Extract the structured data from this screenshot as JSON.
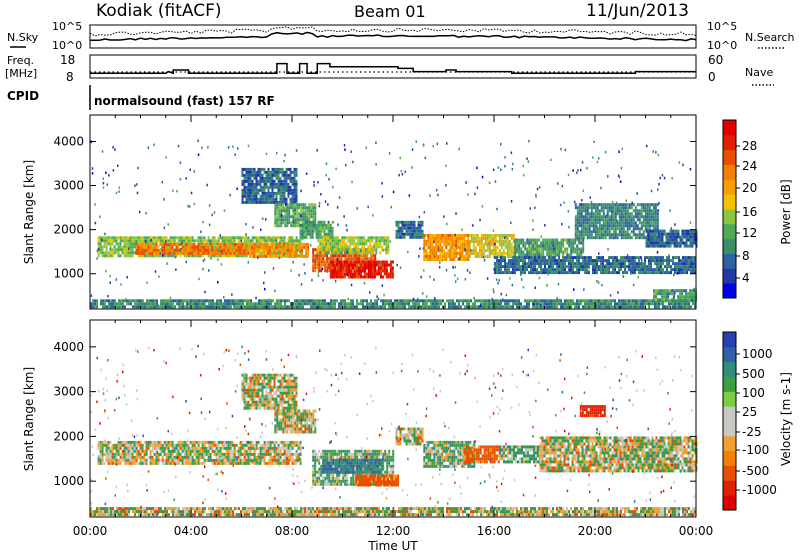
{
  "header": {
    "station": "Kodiak (fitACF)",
    "beam": "Beam 01",
    "date": "11/Jun/2013"
  },
  "side_labels": {
    "nsky": "N.Sky",
    "nsearch": "N.Search",
    "freq": "Freq.",
    "freq_unit": "[MHz]",
    "nave": "Nave",
    "cpid": "CPID"
  },
  "noise_panel": {
    "left_ticks": [
      "10^5",
      "10^0"
    ],
    "right_ticks": [
      "10^5",
      "10^0"
    ]
  },
  "freq_panel": {
    "left_ticks": [
      "18",
      "8"
    ],
    "right_ticks": [
      "60",
      "0"
    ],
    "freq_steps": [
      [
        0,
        11
      ],
      [
        3,
        11
      ],
      [
        3.1,
        12
      ],
      [
        3.3,
        11
      ],
      [
        3.3,
        13
      ],
      [
        3.9,
        13
      ],
      [
        3.9,
        11
      ],
      [
        7.4,
        11
      ],
      [
        7.4,
        17
      ],
      [
        7.8,
        17
      ],
      [
        7.8,
        11
      ],
      [
        8.3,
        11
      ],
      [
        8.3,
        17
      ],
      [
        8.6,
        17
      ],
      [
        8.6,
        11
      ],
      [
        9,
        11
      ],
      [
        9,
        17
      ],
      [
        9.5,
        17
      ],
      [
        9.5,
        15
      ],
      [
        12.2,
        15
      ],
      [
        12.2,
        14
      ],
      [
        12.8,
        14
      ],
      [
        12.8,
        12
      ],
      [
        14.1,
        12
      ],
      [
        14.1,
        13
      ],
      [
        14.5,
        13
      ],
      [
        14.5,
        12
      ],
      [
        16.7,
        12
      ],
      [
        16.7,
        11
      ],
      [
        21.6,
        11
      ],
      [
        21.6,
        12
      ],
      [
        24,
        12
      ]
    ]
  },
  "cpid_text": "normalsound (fast) 157 RF",
  "colorbars": {
    "power": {
      "label": "Power [dB]",
      "ticks": [
        "28",
        "24",
        "20",
        "16",
        "12",
        "8",
        "4"
      ],
      "colors": [
        "#0000ee",
        "#1f3aa8",
        "#2f62a0",
        "#3a8f6a",
        "#4faa55",
        "#8cc63f",
        "#f5c000",
        "#f5a000",
        "#f08000",
        "#e85000",
        "#e02000",
        "#e00000"
      ]
    },
    "velocity": {
      "label": "Velocity [m s-1]",
      "ticks": [
        "1000",
        "500",
        "100",
        "25",
        "-25",
        "-100",
        "-500",
        "-1000"
      ],
      "colors": [
        "#2840b0",
        "#3060a8",
        "#2f8f7a",
        "#3ca040",
        "#7ccc40",
        "#c8c8c0",
        "#c8c8c0",
        "#f0a030",
        "#f08000",
        "#e85000",
        "#e02000",
        "#e00000"
      ]
    }
  },
  "chart_data": [
    {
      "type": "heatmap",
      "name": "power",
      "ylabel": "Slant Range [km]",
      "xlim": [
        0,
        24
      ],
      "ylim": [
        200,
        4600
      ],
      "yticks": [
        "1000",
        "2000",
        "3000",
        "4000"
      ],
      "xticks": [
        "00:00",
        "04:00",
        "08:00",
        "12:00",
        "16:00",
        "20:00",
        "00:00"
      ],
      "bands": [
        {
          "t0": 0.3,
          "t1": 8.3,
          "r0": 1380,
          "r1": 1850,
          "v": 13
        },
        {
          "t0": 1.8,
          "t1": 6.5,
          "r0": 1480,
          "r1": 1700,
          "v": 22
        },
        {
          "t0": 6.3,
          "t1": 8.6,
          "r0": 1420,
          "r1": 1700,
          "v": 20
        },
        {
          "t0": 6.0,
          "t1": 8.2,
          "r0": 2600,
          "r1": 3400,
          "v": 6
        },
        {
          "t0": 7.3,
          "t1": 8.9,
          "r0": 2100,
          "r1": 2600,
          "v": 11
        },
        {
          "t0": 8.3,
          "t1": 9.6,
          "r0": 1850,
          "r1": 2200,
          "v": 10
        },
        {
          "t0": 8.8,
          "t1": 11.3,
          "r0": 1050,
          "r1": 1580,
          "v": 24
        },
        {
          "t0": 9.5,
          "t1": 12.0,
          "r0": 900,
          "r1": 1300,
          "v": 27
        },
        {
          "t0": 9.0,
          "t1": 11.8,
          "r0": 1500,
          "r1": 1850,
          "v": 14
        },
        {
          "t0": 12.1,
          "t1": 13.2,
          "r0": 1800,
          "r1": 2200,
          "v": 7
        },
        {
          "t0": 13.2,
          "t1": 15.0,
          "r0": 1300,
          "r1": 1900,
          "v": 20
        },
        {
          "t0": 15.0,
          "t1": 16.8,
          "r0": 1400,
          "r1": 1900,
          "v": 16
        },
        {
          "t0": 16.8,
          "t1": 19.5,
          "r0": 1400,
          "r1": 1800,
          "v": 10
        },
        {
          "t0": 16.0,
          "t1": 24.0,
          "r0": 1050,
          "r1": 1400,
          "v": 7
        },
        {
          "t0": 19.2,
          "t1": 22.5,
          "r0": 1800,
          "r1": 2600,
          "v": 8
        },
        {
          "t0": 22.0,
          "t1": 24.0,
          "r0": 1600,
          "r1": 2000,
          "v": 6
        },
        {
          "t0": 0.0,
          "t1": 24.0,
          "r0": 220,
          "r1": 420,
          "v": 9
        },
        {
          "t0": 22.3,
          "t1": 24.0,
          "r0": 420,
          "r1": 650,
          "v": 10
        }
      ]
    },
    {
      "type": "heatmap",
      "name": "velocity",
      "ylabel": "Slant Range [km]",
      "xlabel": "Time UT",
      "xlim": [
        0,
        24
      ],
      "ylim": [
        200,
        4600
      ],
      "yticks": [
        "1000",
        "2000",
        "3000",
        "4000"
      ],
      "xticks": [
        "00:00",
        "04:00",
        "08:00",
        "12:00",
        "16:00",
        "20:00",
        "00:00"
      ],
      "bands": [
        {
          "t0": 0.3,
          "t1": 8.3,
          "r0": 1380,
          "r1": 1900,
          "v": 0
        },
        {
          "t0": 6.0,
          "t1": 8.2,
          "r0": 2600,
          "r1": 3400,
          "v": 0
        },
        {
          "t0": 7.3,
          "t1": 8.9,
          "r0": 2100,
          "r1": 2600,
          "v": 0
        },
        {
          "t0": 8.8,
          "t1": 12.0,
          "r0": 950,
          "r1": 1700,
          "v": 60
        },
        {
          "t0": 9.2,
          "t1": 11.5,
          "r0": 1200,
          "r1": 1500,
          "v": 400
        },
        {
          "t0": 10.5,
          "t1": 12.2,
          "r0": 900,
          "r1": 1150,
          "v": -200
        },
        {
          "t0": 12.1,
          "t1": 13.2,
          "r0": 1800,
          "r1": 2200,
          "v": 0
        },
        {
          "t0": 13.2,
          "t1": 15.2,
          "r0": 1300,
          "r1": 1900,
          "v": 70
        },
        {
          "t0": 14.8,
          "t1": 16.2,
          "r0": 1400,
          "r1": 1800,
          "v": -200
        },
        {
          "t0": 16.2,
          "t1": 17.8,
          "r0": 1400,
          "r1": 1800,
          "v": 80
        },
        {
          "t0": 17.8,
          "t1": 24.0,
          "r0": 1200,
          "r1": 2000,
          "v": 0
        },
        {
          "t0": 19.4,
          "t1": 20.4,
          "r0": 2450,
          "r1": 2700,
          "v": -500
        },
        {
          "t0": 0.0,
          "t1": 24.0,
          "r0": 220,
          "r1": 420,
          "v": 0
        }
      ]
    }
  ]
}
